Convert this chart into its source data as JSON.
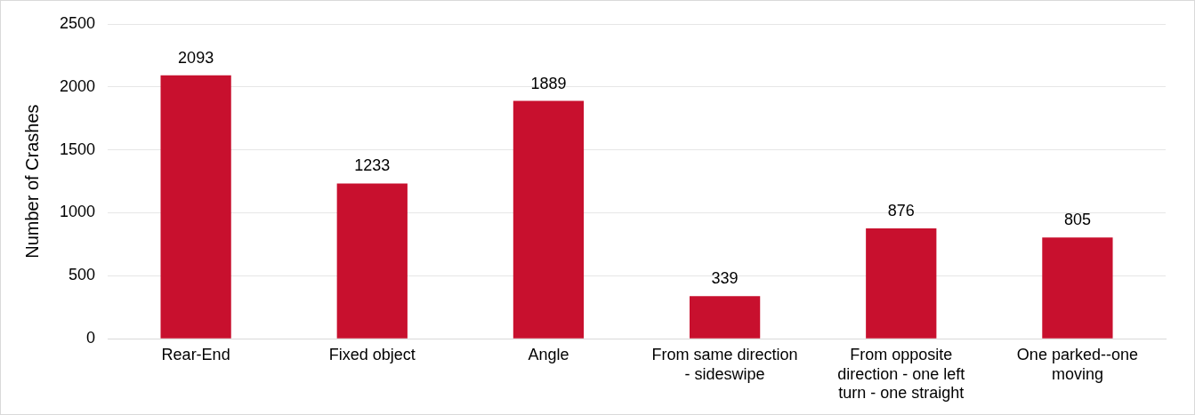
{
  "chart_data": {
    "type": "bar",
    "ylabel": "Number of Crashes",
    "categories": [
      "Rear-End",
      "Fixed object",
      "Angle",
      "From same direction - sideswipe",
      "From opposite direction - one left turn - one straight",
      "One parked--one moving"
    ],
    "values": [
      2093,
      1233,
      1889,
      339,
      876,
      805
    ],
    "color": "#c8102e",
    "ylim": [
      0,
      2500
    ],
    "yticks": [
      0,
      500,
      1000,
      1500,
      2000,
      2500
    ],
    "grid": "y",
    "data_labels": true,
    "legend": false
  }
}
